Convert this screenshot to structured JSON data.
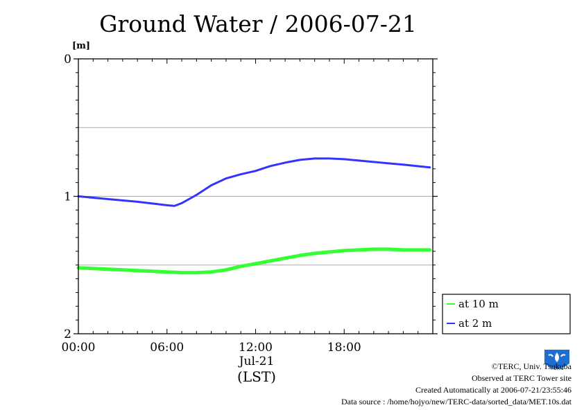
{
  "chart_data": {
    "type": "line",
    "title": "Ground Water / 2006-07-21",
    "ylabel": "[m]",
    "ylim": [
      0,
      2
    ],
    "y_inverted": true,
    "y_ticks": [
      "0",
      "1",
      "2"
    ],
    "y_grid": [
      0.5,
      1,
      1.5
    ],
    "xlim": [
      0,
      24
    ],
    "x_ticks": [
      {
        "x": 0,
        "label": "00:00"
      },
      {
        "x": 6,
        "label": "06:00"
      },
      {
        "x": 12,
        "label": "12:00"
      },
      {
        "x": 18,
        "label": "18:00"
      }
    ],
    "x_date_label": "Jul-21",
    "x_unit_label": "(LST)",
    "grid": true,
    "legend_position": "right",
    "series": [
      {
        "name": "at 10 m",
        "color": "#33ff33",
        "x": [
          0,
          2,
          4,
          6,
          7,
          8,
          9,
          10,
          11,
          12,
          13,
          14,
          15,
          16,
          17,
          18,
          19,
          20,
          21,
          22,
          23.8
        ],
        "values": [
          1.52,
          1.53,
          1.54,
          1.55,
          1.555,
          1.555,
          1.55,
          1.535,
          1.51,
          1.49,
          1.47,
          1.45,
          1.43,
          1.415,
          1.405,
          1.395,
          1.39,
          1.385,
          1.385,
          1.39,
          1.39
        ]
      },
      {
        "name": "at 2 m",
        "color": "#3333ff",
        "x": [
          0,
          2,
          4,
          6,
          6.5,
          7,
          8,
          9,
          10,
          11,
          12,
          13,
          14,
          15,
          16,
          17,
          18,
          19,
          20,
          21,
          22,
          23.8
        ],
        "values": [
          1.0,
          1.02,
          1.04,
          1.065,
          1.07,
          1.05,
          0.99,
          0.92,
          0.87,
          0.84,
          0.815,
          0.78,
          0.755,
          0.735,
          0.725,
          0.725,
          0.73,
          0.74,
          0.75,
          0.76,
          0.77,
          0.79
        ]
      }
    ]
  },
  "footer": {
    "copyright": "©TERC, Univ. Tsukuba",
    "site": "Observed at TERC Tower site",
    "created": "Created Automatically at 2006-07-21/23:55:46",
    "source": "Data source : /home/hojyo/new/TERC-data/sorted_data/MET.10s.dat"
  },
  "logo": {
    "icon": "terc-logo-icon",
    "text": "TERC",
    "color": "#1f6fd1"
  }
}
